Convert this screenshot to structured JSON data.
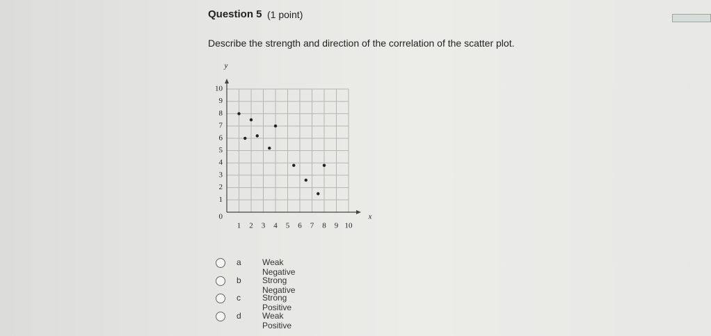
{
  "question": {
    "title": "Question 5",
    "points": "(1 point)",
    "prompt": "Describe the strength and direction of the correlation of the scatter plot.",
    "options": [
      {
        "letter": "a",
        "text": "Weak Negative"
      },
      {
        "letter": "b",
        "text": "Strong Negative"
      },
      {
        "letter": "c",
        "text": "Strong Positive"
      },
      {
        "letter": "d",
        "text": "Weak Positive"
      }
    ]
  },
  "chart_data": {
    "type": "scatter",
    "x_label": "x",
    "y_label": "y",
    "x": [
      1,
      2,
      4,
      1.5,
      2.5,
      3.5,
      5.5,
      8,
      6.5,
      7.5
    ],
    "values": [
      8,
      7.5,
      7,
      6,
      6.2,
      5.2,
      3.8,
      3.8,
      2.6,
      1.5
    ],
    "color": "#222222",
    "xlim": [
      0,
      10
    ],
    "ylim": [
      0,
      10
    ],
    "xticks": [
      1,
      2,
      3,
      4,
      5,
      6,
      7,
      8,
      9,
      10
    ],
    "yticks": [
      0,
      1,
      2,
      3,
      4,
      5,
      6,
      7,
      8,
      9,
      10
    ],
    "grid": true
  }
}
